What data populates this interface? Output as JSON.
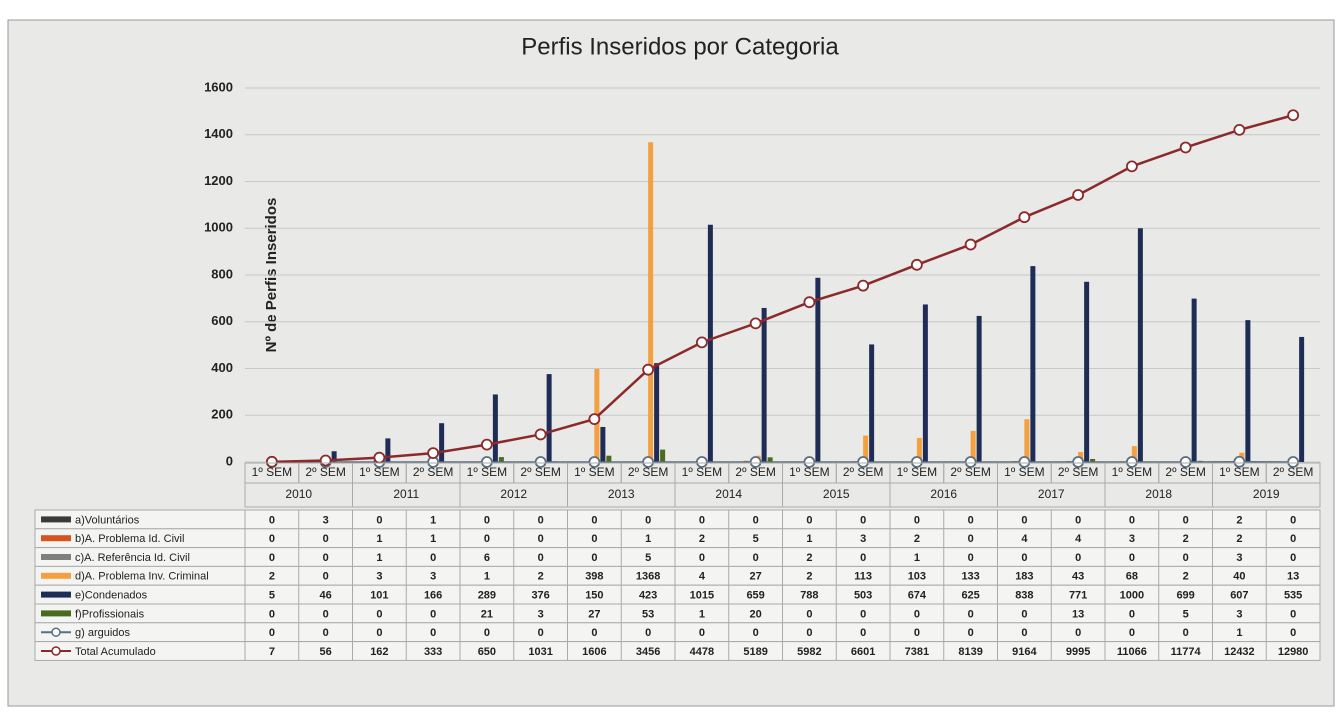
{
  "chart_data": {
    "type": "bar",
    "title": "Perfis Inseridos por Categoria",
    "y_label": "Nº de Perfis Inseridos",
    "categories": [
      "1º SEM",
      "2º SEM",
      "1º SEM",
      "2º SEM",
      "1º SEM",
      "2º SEM",
      "1º SEM",
      "2º SEM",
      "1º SEM",
      "2º SEM",
      "1º SEM",
      "2º SEM",
      "1º SEM",
      "2º SEM",
      "1º SEM",
      "2º SEM",
      "1º SEM",
      "2º SEM",
      "1º SEM",
      "2º SEM"
    ],
    "years": [
      "2010",
      "2011",
      "2012",
      "2013",
      "2014",
      "2015",
      "2016",
      "2017",
      "2018",
      "2019"
    ],
    "ylim": [
      0,
      1600
    ],
    "yticks": [
      0,
      200,
      400,
      600,
      800,
      1000,
      1200,
      1400,
      1600
    ],
    "y2lim": [
      0,
      14000
    ],
    "grid": true,
    "series": [
      {
        "name": "a)Voluntários",
        "type": "bar",
        "color": "#3a3a3a",
        "values": [
          0,
          3,
          0,
          1,
          0,
          0,
          0,
          0,
          0,
          0,
          0,
          0,
          0,
          0,
          0,
          0,
          0,
          0,
          2,
          0
        ]
      },
      {
        "name": "b)A. Problema Id. Civil",
        "type": "bar",
        "color": "#d9531e",
        "values": [
          0,
          0,
          1,
          1,
          0,
          0,
          0,
          1,
          2,
          5,
          1,
          3,
          2,
          0,
          4,
          4,
          3,
          2,
          2,
          0
        ]
      },
      {
        "name": "c)A. Referência Id. Civil",
        "type": "bar",
        "color": "#7f7f7f",
        "values": [
          0,
          0,
          1,
          0,
          6,
          0,
          0,
          5,
          0,
          0,
          2,
          0,
          1,
          0,
          0,
          0,
          0,
          0,
          3,
          0
        ]
      },
      {
        "name": "d)A. Problema Inv. Criminal",
        "type": "bar",
        "color": "#f4a040",
        "values": [
          2,
          0,
          3,
          3,
          1,
          2,
          398,
          1368,
          4,
          27,
          2,
          113,
          103,
          133,
          183,
          43,
          68,
          2,
          40,
          13
        ]
      },
      {
        "name": "e)Condenados",
        "type": "bar",
        "color": "#1f2d56",
        "values": [
          5,
          46,
          101,
          166,
          289,
          376,
          150,
          423,
          1015,
          659,
          788,
          503,
          674,
          625,
          838,
          771,
          1000,
          699,
          607,
          535
        ]
      },
      {
        "name": "f)Profissionais",
        "type": "bar",
        "color": "#4a6b1e",
        "values": [
          0,
          0,
          0,
          0,
          21,
          3,
          27,
          53,
          1,
          20,
          0,
          0,
          0,
          0,
          0,
          13,
          0,
          5,
          3,
          0
        ]
      },
      {
        "name": "g) arguidos",
        "type": "line",
        "color": "#5a6f80",
        "values": [
          0,
          0,
          0,
          0,
          0,
          0,
          0,
          0,
          0,
          0,
          0,
          0,
          0,
          0,
          0,
          0,
          0,
          0,
          1,
          0
        ]
      },
      {
        "name": "Total Acumulado",
        "type": "line",
        "axis": "y2",
        "color": "#8b2a2a",
        "values": [
          7,
          56,
          162,
          333,
          650,
          1031,
          1606,
          3456,
          4478,
          5189,
          5982,
          6601,
          7381,
          8139,
          9164,
          9995,
          11066,
          11774,
          12432,
          12980
        ]
      }
    ]
  }
}
